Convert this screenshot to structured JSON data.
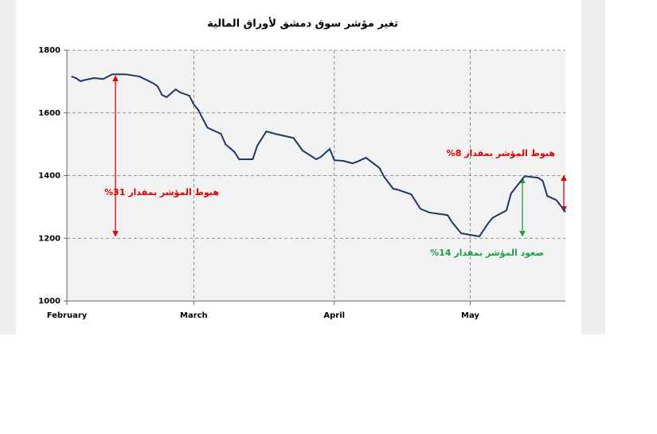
{
  "chart_data": {
    "type": "line",
    "title": "تغير مؤشر سوق دمشق لأوراق المالية",
    "x": [
      1,
      2,
      3,
      4,
      6,
      8,
      10,
      13,
      16,
      19,
      20,
      21,
      22,
      24,
      25,
      27,
      28,
      29,
      31,
      34,
      35,
      37,
      38,
      41,
      42,
      44,
      46,
      50,
      52,
      55,
      56,
      58,
      59,
      61,
      63,
      64,
      66,
      69,
      70,
      72,
      73,
      76,
      78,
      80,
      84,
      85,
      87,
      91,
      93,
      94,
      97,
      98,
      101,
      104,
      105,
      106,
      108,
      110
    ],
    "series": [
      {
        "name": "مؤشر سوق دمشق",
        "color": "#1f3864",
        "values": [
          1716,
          1711,
          1701,
          1705,
          1711,
          1708,
          1723,
          1723,
          1716,
          1695,
          1685,
          1657,
          1650,
          1675,
          1665,
          1655,
          1627,
          1609,
          1553,
          1533,
          1500,
          1475,
          1452,
          1452,
          1495,
          1541,
          1533,
          1520,
          1480,
          1452,
          1459,
          1485,
          1449,
          1447,
          1439,
          1444,
          1457,
          1424,
          1396,
          1358,
          1355,
          1340,
          1294,
          1282,
          1274,
          1251,
          1216,
          1206,
          1249,
          1266,
          1289,
          1343,
          1398,
          1393,
          1383,
          1335,
          1322,
          1284
        ]
      }
    ],
    "xlim": [
      0,
      110
    ],
    "xticks": [
      {
        "value": 0,
        "label": "February"
      },
      {
        "value": 28,
        "label": "March"
      },
      {
        "value": 59,
        "label": "April"
      },
      {
        "value": 89,
        "label": "May"
      }
    ],
    "ylim": [
      1000,
      1800
    ],
    "yticks": [
      1000,
      1200,
      1400,
      1600,
      1800
    ],
    "grid": true,
    "annotations": [
      {
        "text": "هبوط المؤشر بمقدار 31%",
        "color": "#e00000"
      },
      {
        "text": "صعود المؤشر بمقدار 14%",
        "color": "#1aa045"
      },
      {
        "text": "هبوط المؤشر بمقدار 8%",
        "color": "#e00000"
      }
    ]
  }
}
